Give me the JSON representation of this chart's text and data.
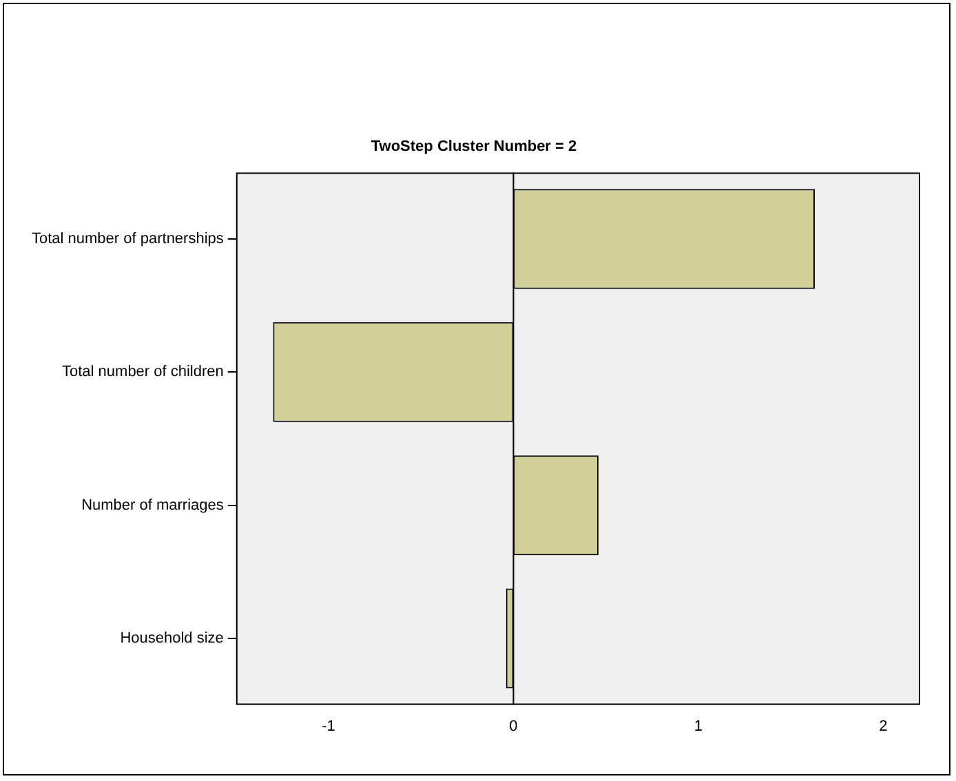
{
  "chart_data": {
    "type": "bar",
    "orientation": "horizontal",
    "title": "TwoStep Cluster Number = 2",
    "categories": [
      "Total number of partnerships",
      "Total number of children",
      "Number of marriages",
      "Household size"
    ],
    "values": [
      1.63,
      -1.3,
      0.46,
      -0.04
    ],
    "color": "#d3cf99",
    "xlim": [
      -1.5,
      2.2
    ],
    "xticks": [
      -1,
      0,
      1,
      2
    ],
    "ref_lines": [
      {
        "axis": "x",
        "value": 0,
        "color": "#000000"
      }
    ],
    "grid": false,
    "legend": false
  }
}
